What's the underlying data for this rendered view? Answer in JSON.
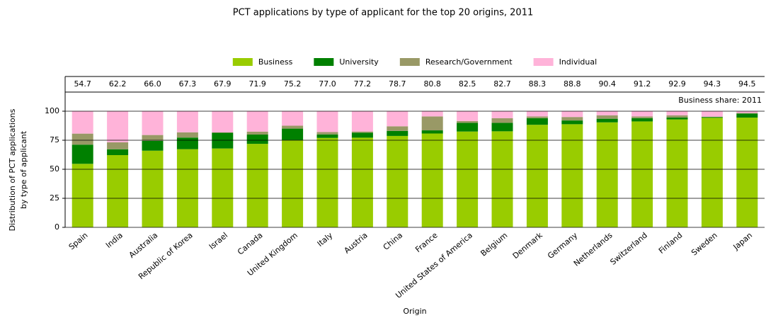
{
  "chart_data": {
    "type": "stacked-bar",
    "title": "PCT applications by type of applicant for the top 20 origins, 2011",
    "x_label": "Origin",
    "y_label": [
      "Distribution of PCT applications",
      "by type of applicant"
    ],
    "table_label": "Business share: 2011",
    "categories": [
      "Spain",
      "India",
      "Australia",
      "Republic of Korea",
      "Israel",
      "Canada",
      "United Kingdom",
      "Italy",
      "Austria",
      "China",
      "France",
      "United States of America",
      "Belgium",
      "Denmark",
      "Germany",
      "Netherlands",
      "Switzerland",
      "Finland",
      "Sweden",
      "Japan"
    ],
    "series": [
      {
        "name": "Business",
        "color": "#99cc00",
        "values": [
          54.7,
          62.2,
          66.0,
          67.3,
          67.9,
          71.9,
          75.2,
          77.0,
          77.2,
          78.7,
          80.8,
          82.5,
          82.7,
          88.3,
          88.8,
          90.4,
          91.2,
          92.9,
          94.3,
          94.5
        ],
        "value_labels": [
          "54.7",
          "62.2",
          "66.0",
          "67.3",
          "67.9",
          "71.9",
          "75.2",
          "77.0",
          "77.2",
          "78.7",
          "80.8",
          "82.5",
          "82.7",
          "88.3",
          "88.8",
          "90.4",
          "91.2",
          "92.9",
          "94.3",
          "94.5"
        ]
      },
      {
        "name": "University",
        "color": "#008000",
        "values": [
          16.5,
          5,
          8.5,
          10,
          13.5,
          8,
          9.8,
          3,
          4.3,
          4.3,
          2.7,
          7.5,
          7.3,
          5.7,
          3.2,
          3.1,
          2.8,
          1.6,
          0.7,
          3.5
        ]
      },
      {
        "name": "Research/Government",
        "color": "#999966",
        "values": [
          9.5,
          6,
          5,
          4.5,
          0.3,
          2.5,
          2.5,
          2,
          1,
          4,
          12,
          1.5,
          4,
          1.5,
          3,
          3,
          1.5,
          2,
          0.3,
          0.5
        ]
      },
      {
        "name": "Individual",
        "color": "#ffb3d9",
        "values": [
          19.3,
          26.8,
          20.5,
          18.2,
          18.3,
          17.6,
          12.5,
          18,
          17.5,
          13,
          4.5,
          8.5,
          6,
          4.5,
          5,
          3.5,
          4.5,
          3.5,
          4.7,
          1.5
        ]
      }
    ],
    "ylim": [
      0,
      100
    ],
    "yticks": [
      0,
      25,
      50,
      75,
      100
    ],
    "grid": true,
    "legend": "top"
  }
}
